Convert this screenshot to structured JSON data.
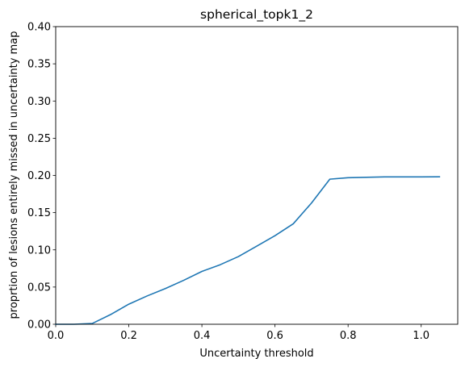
{
  "chart_data": {
    "type": "line",
    "title": "spherical_topk1_2",
    "xlabel": "Uncertainty threshold",
    "ylabel": "proprtion of lesions entirely missed in uncertainty map",
    "xlim": [
      0.0,
      1.1
    ],
    "ylim": [
      0.0,
      0.4
    ],
    "xticks": [
      0.0,
      0.2,
      0.4,
      0.6,
      0.8,
      1.0
    ],
    "xtick_labels": [
      "0.0",
      "0.2",
      "0.4",
      "0.6",
      "0.8",
      "1.0"
    ],
    "yticks": [
      0.0,
      0.05,
      0.1,
      0.15,
      0.2,
      0.25,
      0.3,
      0.35,
      0.4
    ],
    "ytick_labels": [
      "0.00",
      "0.05",
      "0.10",
      "0.15",
      "0.20",
      "0.25",
      "0.30",
      "0.35",
      "0.40"
    ],
    "grid": false,
    "series": [
      {
        "color": "#1f77b4",
        "x": [
          0.0,
          0.05,
          0.1,
          0.15,
          0.2,
          0.25,
          0.3,
          0.35,
          0.4,
          0.45,
          0.5,
          0.55,
          0.6,
          0.65,
          0.7,
          0.75,
          0.8,
          0.85,
          0.9,
          0.95,
          1.0,
          1.05
        ],
        "y": [
          0.0,
          0.0,
          0.001,
          0.013,
          0.027,
          0.038,
          0.048,
          0.059,
          0.071,
          0.08,
          0.091,
          0.105,
          0.119,
          0.135,
          0.163,
          0.195,
          0.197,
          0.1975,
          0.198,
          0.198,
          0.198,
          0.1982
        ]
      }
    ]
  }
}
